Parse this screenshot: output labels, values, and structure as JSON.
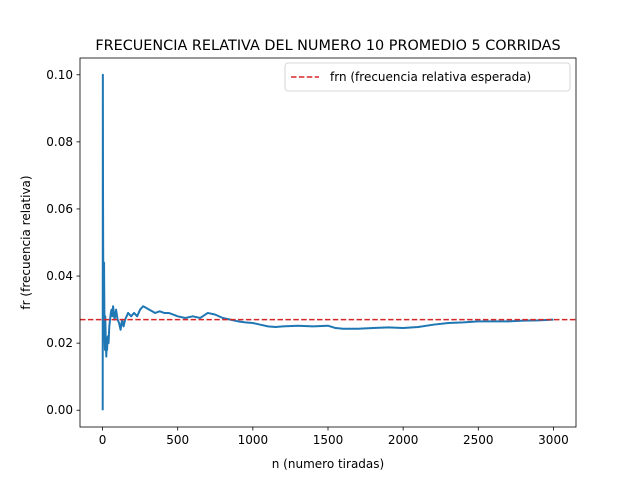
{
  "chart_data": {
    "type": "line",
    "title": "FRECUENCIA RELATIVA DEL NUMERO 10 PROMEDIO 5 CORRIDAS",
    "xlabel": "n (numero tiradas)",
    "ylabel": "fr (frecuencia relativa)",
    "xlim": [
      -150,
      3150
    ],
    "ylim": [
      -0.005,
      0.105
    ],
    "x_ticks": [
      0,
      500,
      1000,
      1500,
      2000,
      2500,
      3000
    ],
    "x_tick_labels": [
      "0",
      "500",
      "1000",
      "1500",
      "2000",
      "2500",
      "3000"
    ],
    "y_ticks": [
      0.0,
      0.02,
      0.04,
      0.06,
      0.08,
      0.1
    ],
    "y_tick_labels": [
      "0.00",
      "0.02",
      "0.04",
      "0.06",
      "0.08",
      "0.10"
    ],
    "grid": false,
    "legend_position": "top-right",
    "series": [
      {
        "style": "solid",
        "color": "#1f77b4",
        "x": [
          1,
          2,
          3,
          4,
          5,
          6,
          8,
          10,
          12,
          14,
          16,
          18,
          20,
          22,
          25,
          28,
          30,
          35,
          40,
          45,
          50,
          55,
          60,
          65,
          70,
          75,
          80,
          90,
          100,
          110,
          120,
          130,
          140,
          150,
          170,
          190,
          210,
          230,
          250,
          270,
          290,
          310,
          330,
          350,
          380,
          410,
          440,
          470,
          500,
          550,
          600,
          650,
          700,
          750,
          800,
          850,
          900,
          950,
          1000,
          1050,
          1100,
          1150,
          1200,
          1300,
          1400,
          1500,
          1550,
          1600,
          1700,
          1800,
          1900,
          2000,
          2100,
          2200,
          2300,
          2400,
          2500,
          2600,
          2700,
          2800,
          2900,
          3000
        ],
        "values": [
          0.0,
          0.1,
          0.0667,
          0.05,
          0.04,
          0.0333,
          0.025,
          0.044,
          0.03,
          0.022,
          0.018,
          0.028,
          0.024,
          0.02,
          0.016,
          0.021,
          0.018,
          0.022,
          0.02,
          0.025,
          0.027,
          0.029,
          0.03,
          0.028,
          0.031,
          0.029,
          0.027,
          0.03,
          0.027,
          0.026,
          0.024,
          0.027,
          0.025,
          0.027,
          0.029,
          0.028,
          0.029,
          0.028,
          0.03,
          0.031,
          0.0305,
          0.03,
          0.0295,
          0.029,
          0.0295,
          0.029,
          0.029,
          0.0285,
          0.028,
          0.0275,
          0.028,
          0.0275,
          0.029,
          0.0285,
          0.0275,
          0.027,
          0.0265,
          0.0262,
          0.026,
          0.0255,
          0.025,
          0.0248,
          0.025,
          0.0252,
          0.025,
          0.0252,
          0.0245,
          0.0243,
          0.0243,
          0.0245,
          0.0247,
          0.0245,
          0.0248,
          0.0255,
          0.026,
          0.0262,
          0.0265,
          0.0265,
          0.0265,
          0.0267,
          0.0268,
          0.027
        ]
      },
      {
        "name": "frn (frecuencia relativa esperada)",
        "style": "dashed",
        "color": "#d62728",
        "constant": 0.027
      }
    ]
  }
}
